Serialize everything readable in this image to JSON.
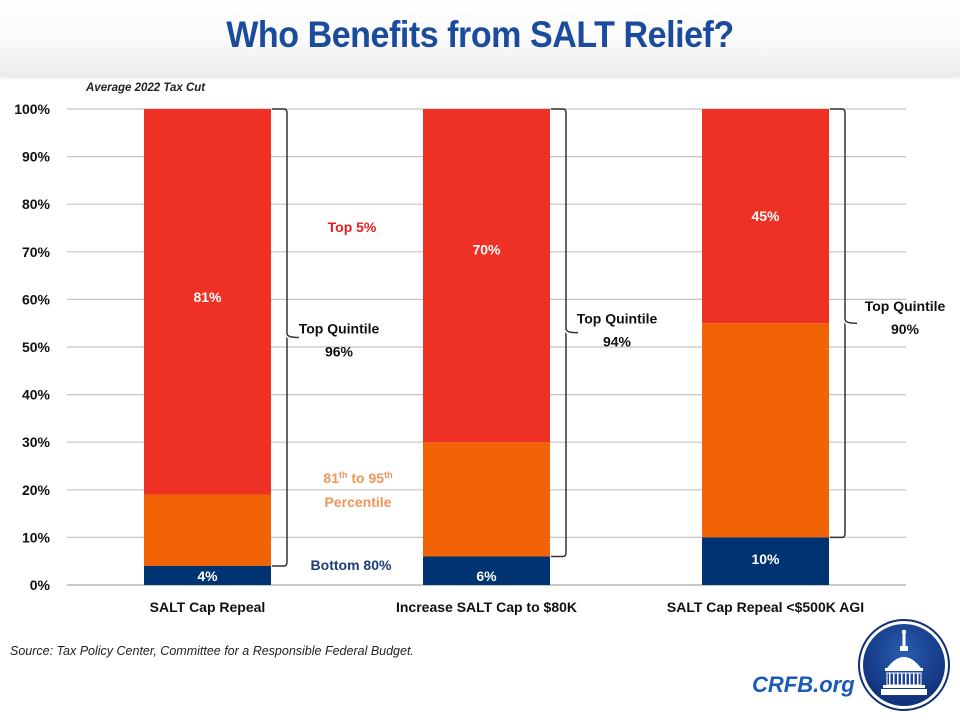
{
  "header": {
    "title": "Who Benefits from SALT Relief?"
  },
  "chart_data": {
    "type": "bar",
    "stacked": true,
    "title": "Who Benefits from SALT Relief?",
    "subtitle": "Average 2022 Tax Cut",
    "xlabel": "",
    "ylabel": "",
    "ylim": [
      0,
      100
    ],
    "yticks": [
      "0%",
      "10%",
      "20%",
      "30%",
      "40%",
      "50%",
      "60%",
      "70%",
      "80%",
      "90%",
      "100%"
    ],
    "grid": true,
    "categories": [
      "SALT Cap Repeal",
      "Increase SALT Cap to $80K",
      "SALT Cap Repeal <$500K AGI"
    ],
    "series": [
      {
        "name": "Bottom 80%",
        "color": "#003371",
        "values": [
          4,
          6,
          10
        ],
        "labels": [
          "4%",
          "6%",
          "10%"
        ]
      },
      {
        "name": "81th to 95th Percentile",
        "color": "#F26306",
        "values": [
          15,
          24,
          45
        ],
        "labels": [
          "",
          "",
          ""
        ]
      },
      {
        "name": "Top 5%",
        "color": "#EE3124",
        "values": [
          81,
          70,
          45
        ],
        "labels": [
          "81%",
          "70%",
          "45%"
        ]
      }
    ],
    "legend_labels": {
      "top5": {
        "text": "Top 5%",
        "color": "#E41E1E"
      },
      "mid": {
        "line1": "81",
        "sup1": "th",
        "mid": " to 95",
        "sup2": "th",
        "line2": "Percentile",
        "color": "#F0955A"
      },
      "bottom": {
        "text": "Bottom 80%",
        "color": "#1F3C78"
      }
    },
    "annotations": [
      {
        "label": "Top Quintile",
        "value": "96%"
      },
      {
        "label": "Top Quintile",
        "value": "94%"
      },
      {
        "label": "Top Quintile",
        "value": "90%"
      }
    ]
  },
  "footer": {
    "source": "Source: Tax Policy Center, Committee for a Responsible Federal Budget.",
    "brand": "CRFB.org"
  }
}
